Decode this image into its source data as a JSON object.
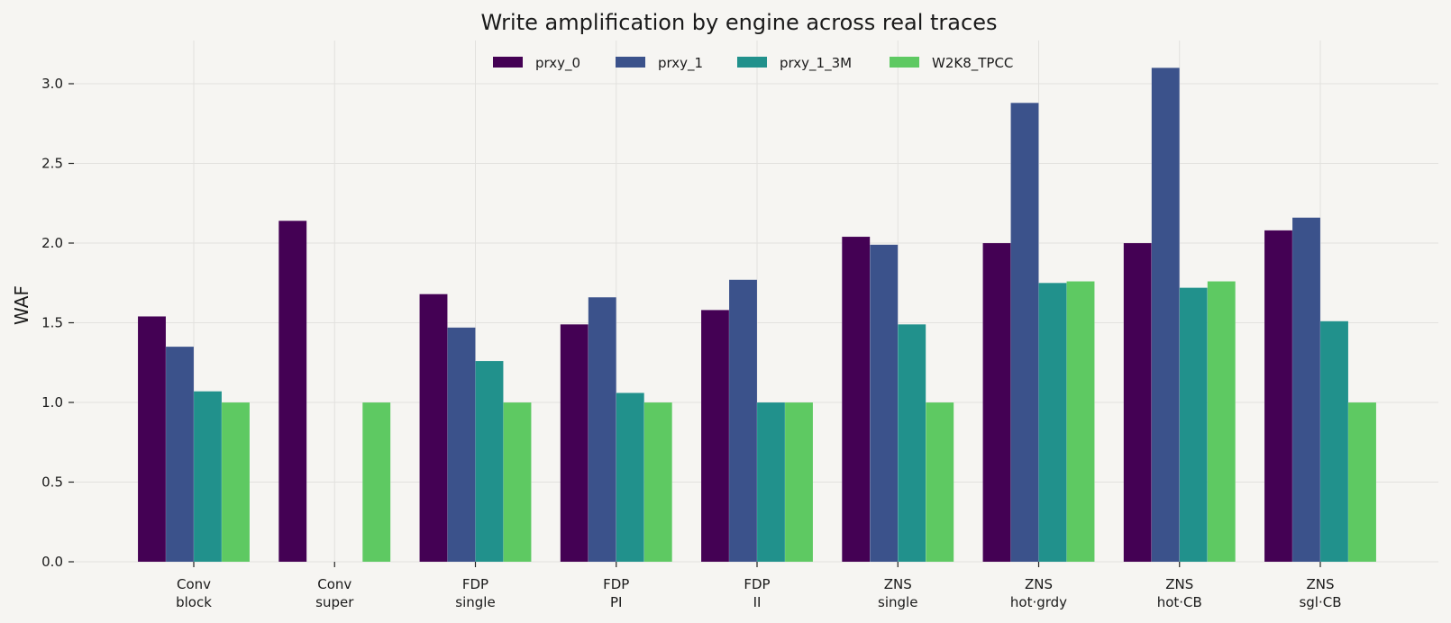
{
  "chart_data": {
    "type": "bar",
    "title": "Write amplification by engine across real traces",
    "xlabel": "",
    "ylabel": "WAF",
    "ylim": [
      0,
      3.25
    ],
    "yticks": [
      "0.0",
      "0.5",
      "1.0",
      "1.5",
      "2.0",
      "2.5",
      "3.0"
    ],
    "grid": true,
    "legend_position": "top-center",
    "categories": [
      [
        "Conv",
        "block"
      ],
      [
        "Conv",
        "super"
      ],
      [
        "FDP",
        "single"
      ],
      [
        "FDP",
        "PI"
      ],
      [
        "FDP",
        "II"
      ],
      [
        "ZNS",
        "single"
      ],
      [
        "ZNS",
        "hot·grdy"
      ],
      [
        "ZNS",
        "hot·CB"
      ],
      [
        "ZNS",
        "sgl·CB"
      ]
    ],
    "series": [
      {
        "name": "prxy_0",
        "color": "#440154",
        "values": [
          1.54,
          2.14,
          1.68,
          1.49,
          1.58,
          2.04,
          2.0,
          2.0,
          2.08
        ]
      },
      {
        "name": "prxy_1",
        "color": "#3b528b",
        "values": [
          1.35,
          null,
          1.47,
          1.66,
          1.77,
          1.99,
          2.88,
          3.1,
          2.16
        ]
      },
      {
        "name": "prxy_1_3M",
        "color": "#21918c",
        "values": [
          1.07,
          null,
          1.26,
          1.06,
          1.0,
          1.49,
          1.75,
          1.72,
          1.51
        ]
      },
      {
        "name": "W2K8_TPCC",
        "color": "#5ec962",
        "values": [
          1.0,
          1.0,
          1.0,
          1.0,
          1.0,
          1.0,
          1.76,
          1.76,
          1.0
        ]
      }
    ]
  }
}
